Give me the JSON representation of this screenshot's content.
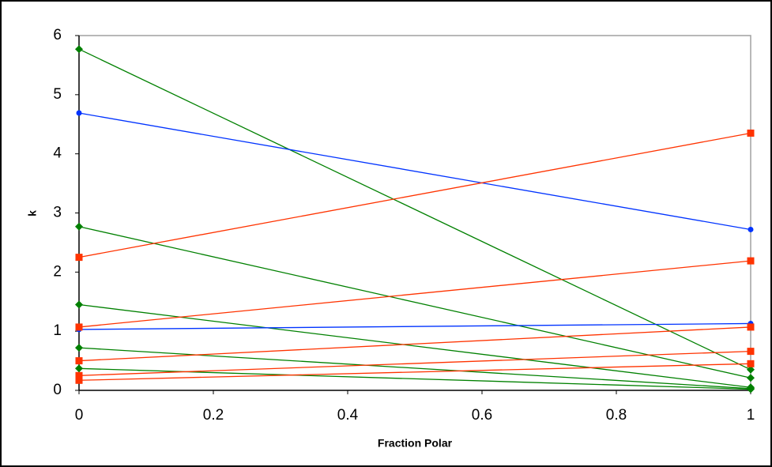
{
  "chart_data": {
    "type": "line",
    "x_label": "Fraction Polar",
    "y_label": "k",
    "x": [
      0,
      1
    ],
    "xlim": [
      0,
      1
    ],
    "xticks": [
      0,
      0.2,
      0.4,
      0.6,
      0.8,
      1
    ],
    "ylim": [
      0,
      6
    ],
    "yticks": [
      0,
      1,
      2,
      3,
      4,
      5,
      6
    ],
    "grid": false,
    "series": [
      {
        "color": "#008000",
        "marker": "diamond",
        "values": [
          5.77,
          0.35
        ]
      },
      {
        "color": "#008000",
        "marker": "diamond",
        "values": [
          2.77,
          0.21
        ]
      },
      {
        "color": "#008000",
        "marker": "diamond",
        "values": [
          1.45,
          0.05
        ]
      },
      {
        "color": "#008000",
        "marker": "diamond",
        "values": [
          0.72,
          0.03
        ]
      },
      {
        "color": "#008000",
        "marker": "diamond",
        "values": [
          0.37,
          0.02
        ]
      },
      {
        "color": "#0033ff",
        "marker": "circle",
        "values": [
          4.69,
          2.72
        ]
      },
      {
        "color": "#0033ff",
        "marker": "circle",
        "values": [
          1.03,
          1.13
        ]
      },
      {
        "color": "#ff3300",
        "marker": "square",
        "values": [
          2.25,
          4.35
        ]
      },
      {
        "color": "#ff3300",
        "marker": "square",
        "values": [
          1.07,
          2.19
        ]
      },
      {
        "color": "#ff3300",
        "marker": "square",
        "values": [
          0.5,
          1.07
        ]
      },
      {
        "color": "#ff3300",
        "marker": "square",
        "values": [
          0.25,
          0.66
        ]
      },
      {
        "color": "#ff3300",
        "marker": "square",
        "values": [
          0.17,
          0.45
        ]
      }
    ]
  }
}
